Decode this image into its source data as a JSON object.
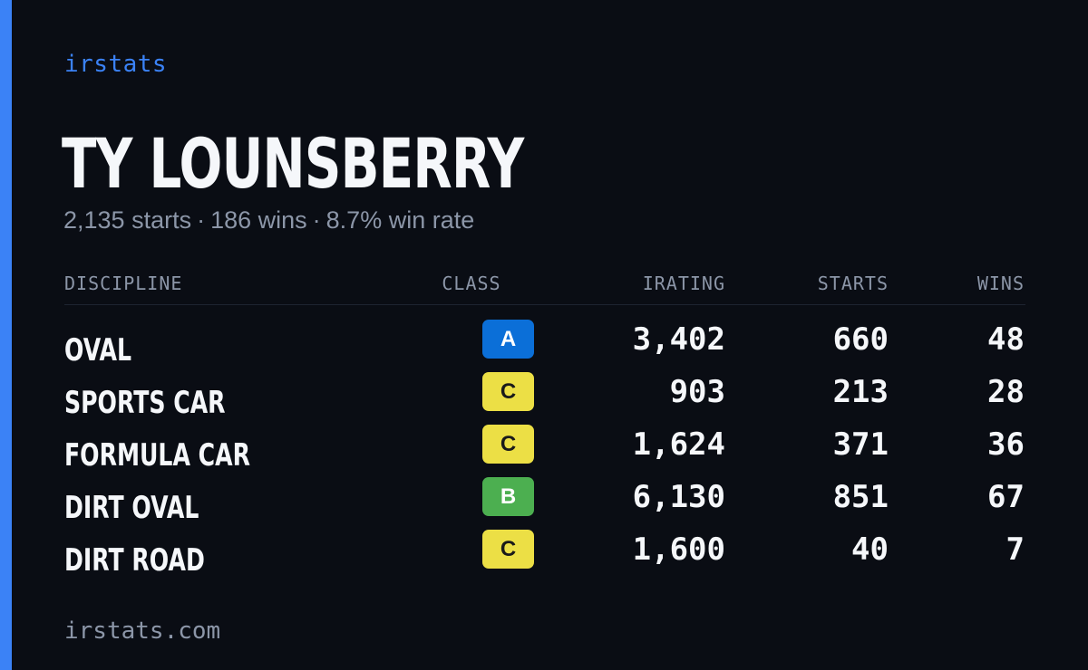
{
  "brand": "irstats",
  "player": {
    "name": "TY LOUNSBERRY",
    "summary": {
      "starts": "2,135 starts",
      "wins": "186 wins",
      "win_rate": "8.7% win rate",
      "separator": "·"
    }
  },
  "table": {
    "headers": {
      "discipline": "DISCIPLINE",
      "class": "CLASS",
      "irating": "IRATING",
      "starts": "STARTS",
      "wins": "WINS"
    },
    "rows": [
      {
        "discipline": "OVAL",
        "class": "A",
        "class_color": "#0b6fd8",
        "class_text_color": "#ffffff",
        "irating": "3,402",
        "starts": "660",
        "wins": "48"
      },
      {
        "discipline": "SPORTS CAR",
        "class": "C",
        "class_color": "#ecdf45",
        "class_text_color": "#1a1a1a",
        "irating": "903",
        "starts": "213",
        "wins": "28"
      },
      {
        "discipline": "FORMULA CAR",
        "class": "C",
        "class_color": "#ecdf45",
        "class_text_color": "#1a1a1a",
        "irating": "1,624",
        "starts": "371",
        "wins": "36"
      },
      {
        "discipline": "DIRT OVAL",
        "class": "B",
        "class_color": "#4caf50",
        "class_text_color": "#ffffff",
        "irating": "6,130",
        "starts": "851",
        "wins": "67"
      },
      {
        "discipline": "DIRT ROAD",
        "class": "C",
        "class_color": "#ecdf45",
        "class_text_color": "#1a1a1a",
        "irating": "1,600",
        "starts": "40",
        "wins": "7"
      }
    ]
  },
  "footer": "irstats.com",
  "colors": {
    "accent": "#3b82f6",
    "background": "#0a0d14",
    "muted_text": "#8c96a8",
    "primary_text": "#f5f7fa"
  }
}
